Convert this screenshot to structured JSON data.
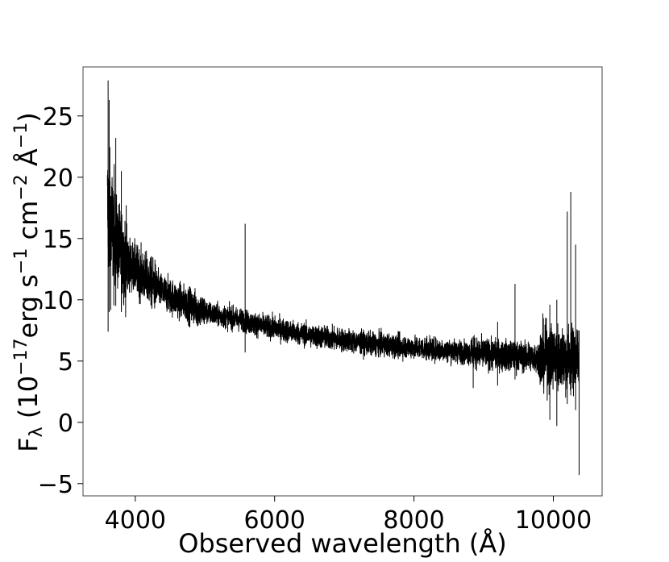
{
  "chart_data": {
    "type": "line",
    "title": "",
    "xlabel": "Observed wavelength (Å)",
    "ylabel_parts": {
      "flux": "F",
      "flux_sub": "λ",
      "open": " (10",
      "exp1": "−17",
      "erg": "erg s",
      "exp2": "−1",
      "cm": " cm",
      "exp3": "−2",
      "ang": " Å",
      "exp4": "−1",
      "close": ")"
    },
    "xlim": [
      3250,
      10700
    ],
    "ylim": [
      -6,
      29
    ],
    "xticks": [
      4000,
      6000,
      8000,
      10000
    ],
    "xtick_labels": [
      "4000",
      "6000",
      "8000",
      "10000"
    ],
    "yticks": [
      -5,
      0,
      5,
      10,
      15,
      20,
      25
    ],
    "ytick_labels": [
      "−5",
      "0",
      "5",
      "10",
      "15",
      "20",
      "25"
    ],
    "grid": false,
    "line_color": "#000000",
    "series": [
      {
        "x": [
          3600,
          3650,
          3700,
          3800,
          3900,
          4000,
          4200,
          4400,
          4600,
          4800,
          5000,
          5200,
          5400,
          5577,
          5600,
          5800,
          6000,
          6300,
          6600,
          7000,
          7400,
          7800,
          8000,
          8400,
          8800,
          9000,
          9300,
          9600,
          9800,
          10000,
          10200,
          10300,
          10370
        ],
        "y": [
          17.5,
          16.0,
          15.0,
          13.8,
          13.0,
          12.5,
          11.5,
          10.6,
          10.0,
          9.5,
          9.0,
          8.7,
          8.5,
          8.3,
          8.2,
          7.9,
          7.7,
          7.3,
          7.0,
          6.7,
          6.4,
          6.2,
          6.1,
          5.9,
          5.7,
          5.6,
          5.45,
          5.35,
          5.3,
          5.3,
          5.25,
          5.2,
          5.2
        ]
      }
    ],
    "features": [
      {
        "x": 3610,
        "top": 27.9,
        "bottom": 7.4
      },
      {
        "x": 3625,
        "top": 26.3,
        "bottom": 9.0
      },
      {
        "x": 3720,
        "top": 23.2,
        "bottom": 9.5
      },
      {
        "x": 3800,
        "top": 20.5,
        "bottom": 9.0
      },
      {
        "x": 5577,
        "top": 16.2,
        "bottom": 5.7
      },
      {
        "x": 8850,
        "top": 7.0,
        "bottom": 2.8
      },
      {
        "x": 9200,
        "top": 8.2,
        "bottom": 3.0
      },
      {
        "x": 9450,
        "top": 11.3,
        "bottom": 3.5
      },
      {
        "x": 9950,
        "top": 9.6,
        "bottom": 0.2
      },
      {
        "x": 10050,
        "top": 10.0,
        "bottom": -0.3
      },
      {
        "x": 10200,
        "top": 17.2,
        "bottom": 1.5
      },
      {
        "x": 10250,
        "top": 18.8,
        "bottom": 2.2
      },
      {
        "x": 10320,
        "top": 14.5,
        "bottom": 1.0
      },
      {
        "x": 10370,
        "top": 7.5,
        "bottom": -4.3
      }
    ]
  }
}
